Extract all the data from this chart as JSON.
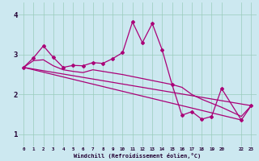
{
  "xlabel": "Windchill (Refroidissement éolien,°C)",
  "background_color": "#cce8f0",
  "line_color": "#aa0077",
  "grid_color": "#99ccbb",
  "xlim": [
    -0.5,
    23.5
  ],
  "ylim": [
    0.7,
    4.3
  ],
  "yticks": [
    1,
    2,
    3,
    4
  ],
  "xtick_positions": [
    0,
    1,
    2,
    3,
    4,
    5,
    6,
    7,
    8,
    9,
    10,
    11,
    12,
    13,
    14,
    15,
    16,
    17,
    18,
    19,
    20,
    22,
    23
  ],
  "xtick_labels": [
    "0",
    "1",
    "2",
    "3",
    "4",
    "5",
    "6",
    "7",
    "8",
    "9",
    "10",
    "11",
    "12",
    "13",
    "14",
    "15",
    "16",
    "17",
    "18",
    "19",
    "20",
    "22",
    "23"
  ],
  "series1_x": [
    0,
    1,
    2,
    3,
    4,
    5,
    6,
    7,
    8,
    9,
    10,
    11,
    12,
    13,
    14,
    15,
    16,
    17,
    18,
    19,
    20,
    22,
    23
  ],
  "series1_y": [
    2.68,
    2.92,
    3.22,
    2.93,
    2.68,
    2.73,
    2.72,
    2.8,
    2.78,
    2.9,
    3.05,
    3.82,
    3.3,
    3.78,
    3.12,
    2.25,
    1.48,
    1.57,
    1.38,
    1.45,
    2.15,
    1.36,
    1.72
  ],
  "series2_x": [
    0,
    1,
    2,
    3,
    4,
    5,
    6,
    7,
    8,
    9,
    10,
    11,
    12,
    13,
    14,
    15,
    16,
    17,
    18,
    19,
    20,
    22,
    23
  ],
  "series2_y": [
    2.68,
    2.85,
    2.87,
    2.72,
    2.62,
    2.58,
    2.55,
    2.62,
    2.58,
    2.54,
    2.5,
    2.45,
    2.4,
    2.35,
    2.3,
    2.25,
    2.18,
    2.0,
    1.88,
    1.78,
    1.68,
    1.45,
    1.72
  ],
  "series3_x": [
    0,
    23
  ],
  "series3_y": [
    2.68,
    1.72
  ],
  "series4_x": [
    0,
    22
  ],
  "series4_y": [
    2.68,
    1.36
  ]
}
